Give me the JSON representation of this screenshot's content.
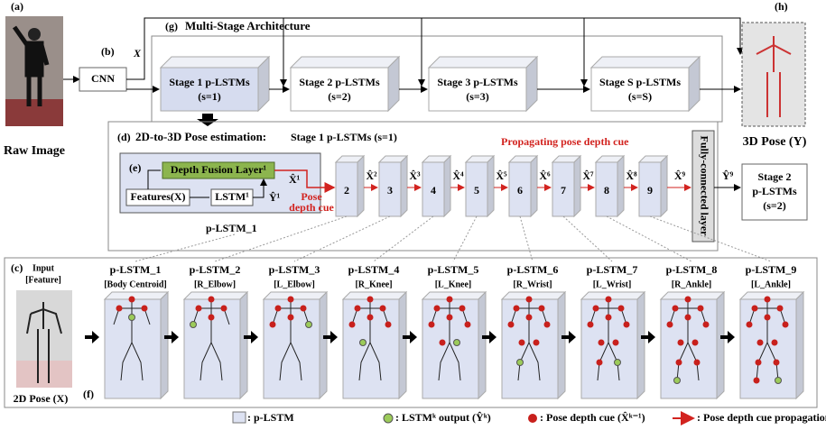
{
  "panel_a": "(a)",
  "raw_image": "Raw Image",
  "panel_b": "(b)",
  "cnn": "CNN",
  "x_input": "X",
  "multi_stage": {
    "label": "(g)",
    "title": "Multi-Stage Architecture",
    "stages": [
      {
        "name": "Stage 1 p-LSTMs",
        "s": "(s=1)"
      },
      {
        "name": "Stage 2 p-LSTMs",
        "s": "(s=2)"
      },
      {
        "name": "Stage 3 p-LSTMs",
        "s": "(s=3)"
      },
      {
        "name": "Stage S p-LSTMs",
        "s": "(s=S)"
      }
    ]
  },
  "panel_h": "(h)",
  "pose_3d": "3D Pose (Y)",
  "estimation": {
    "label": "(d)",
    "title": "2D-to-3D Pose estimation:",
    "subtitle": "Stage 1 p-LSTMs (s=1)",
    "propagating": "Propagating pose depth cue",
    "panel_e": "(e)",
    "depth_fusion": "Depth Fusion Layer¹",
    "features": "Features(X)",
    "lstm": "LSTM¹",
    "y_hat_1": "Ŷ¹",
    "x_hat_1": "X̂¹",
    "pose_depth_cue": [
      "Pose",
      "depth cue"
    ],
    "cubes": [
      "2",
      "3",
      "4",
      "5",
      "6",
      "7",
      "8",
      "9"
    ],
    "x_hats": [
      "X̂²",
      "X̂³",
      "X̂⁴",
      "X̂⁵",
      "X̂⁶",
      "X̂⁷",
      "X̂⁸",
      "X̂⁹"
    ],
    "fully_connected": "Fully-connected layer",
    "y_hat_9": "Ŷ⁹",
    "next_stage": [
      "Stage 2",
      "p-LSTMs",
      "(s=2)"
    ],
    "plstm_label": "p-LSTM_1"
  },
  "bottom": {
    "label": "(c)",
    "input": [
      "Input",
      "[Feature]"
    ],
    "pose_2d": "2D Pose (X)",
    "panel_f": "(f)",
    "modules": [
      {
        "name": "p-LSTM_1",
        "joint": "[Body Centroid]"
      },
      {
        "name": "p-LSTM_2",
        "joint": "[R_Elbow]"
      },
      {
        "name": "p-LSTM_3",
        "joint": "[L_Elbow]"
      },
      {
        "name": "p-LSTM_4",
        "joint": "[R_Knee]"
      },
      {
        "name": "p-LSTM_5",
        "joint": "[L_Knee]"
      },
      {
        "name": "p-LSTM_6",
        "joint": "[R_Wrist]"
      },
      {
        "name": "p-LSTM_7",
        "joint": "[L_Wrist]"
      },
      {
        "name": "p-LSTM_8",
        "joint": "[R_Ankle]"
      },
      {
        "name": "p-LSTM_9",
        "joint": "[L_Ankle]"
      }
    ]
  },
  "legend": [
    ": p-LSTM",
    ": LSTMᵏ output (Ŷᵏ)",
    ": Pose depth cue (X̂ᵏ⁻¹)",
    ": Pose depth cue propagation"
  ]
}
